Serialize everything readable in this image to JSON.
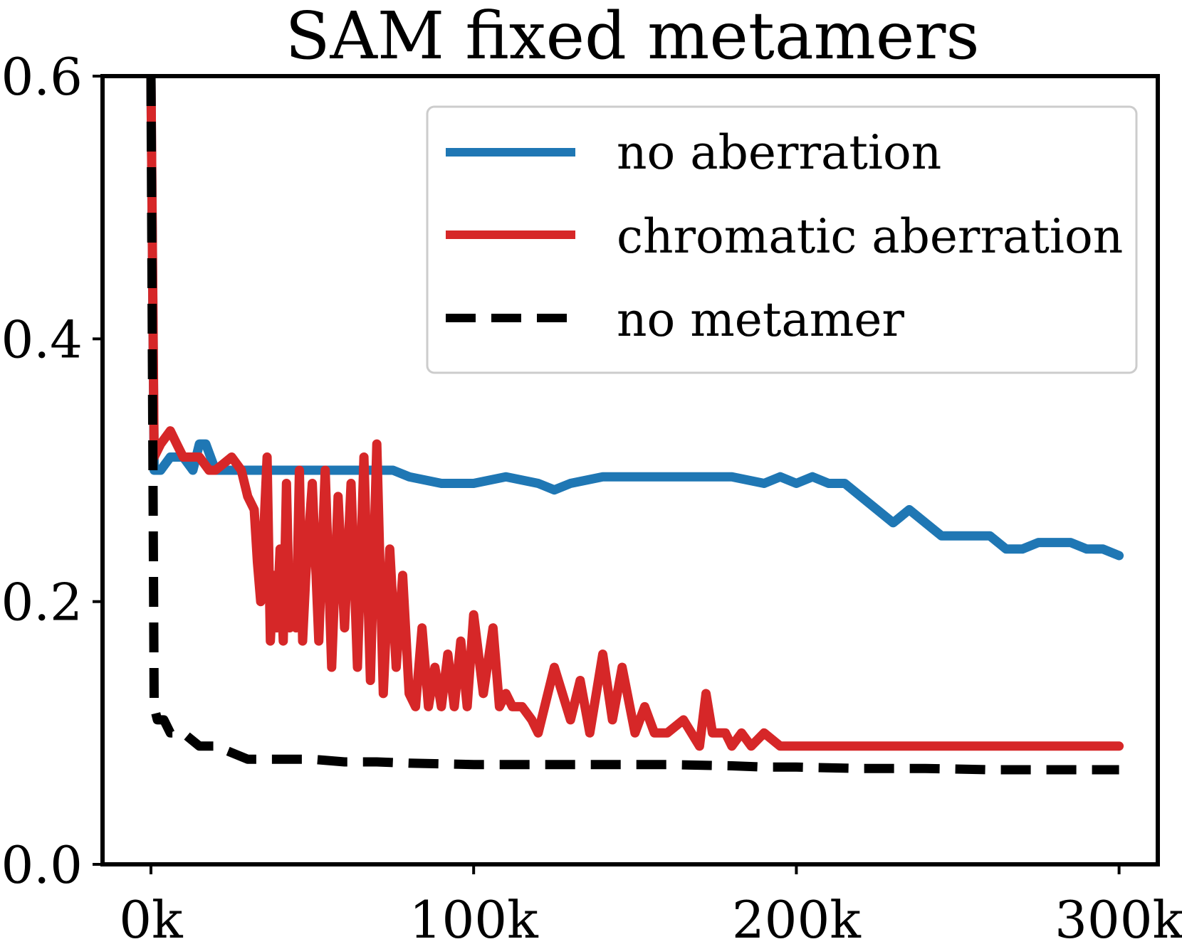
{
  "chart_data": {
    "type": "line",
    "title": "SAM fixed metamers",
    "xlabel": "",
    "ylabel": "",
    "xlim": [
      -15000,
      312000
    ],
    "ylim": [
      0,
      0.6
    ],
    "x_ticks": [
      0,
      100000,
      200000,
      300000
    ],
    "x_tick_labels": [
      "0k",
      "100k",
      "200k",
      "300k"
    ],
    "y_ticks": [
      0.0,
      0.2,
      0.4,
      0.6
    ],
    "y_tick_labels": [
      "0.0",
      "0.2",
      "0.4",
      "0.6"
    ],
    "grid": false,
    "legend_position": "top-right",
    "series": [
      {
        "name": "no aberration",
        "color": "#1f77b4",
        "style": "solid",
        "x": [
          0,
          1000,
          3000,
          6000,
          10000,
          13000,
          15000,
          17000,
          20000,
          25000,
          30000,
          35000,
          40000,
          45000,
          50000,
          55000,
          60000,
          65000,
          70000,
          75000,
          80000,
          90000,
          100000,
          110000,
          120000,
          125000,
          130000,
          140000,
          150000,
          160000,
          170000,
          180000,
          190000,
          195000,
          200000,
          205000,
          210000,
          215000,
          220000,
          225000,
          230000,
          235000,
          240000,
          245000,
          250000,
          255000,
          260000,
          265000,
          270000,
          275000,
          280000,
          285000,
          290000,
          295000,
          300000
        ],
        "y": [
          0.6,
          0.3,
          0.3,
          0.31,
          0.31,
          0.3,
          0.32,
          0.32,
          0.3,
          0.3,
          0.3,
          0.3,
          0.3,
          0.3,
          0.3,
          0.3,
          0.3,
          0.3,
          0.3,
          0.3,
          0.295,
          0.29,
          0.29,
          0.295,
          0.29,
          0.285,
          0.29,
          0.295,
          0.295,
          0.295,
          0.295,
          0.295,
          0.29,
          0.295,
          0.29,
          0.295,
          0.29,
          0.29,
          0.28,
          0.27,
          0.26,
          0.27,
          0.26,
          0.25,
          0.25,
          0.25,
          0.25,
          0.24,
          0.24,
          0.245,
          0.245,
          0.245,
          0.24,
          0.24,
          0.235
        ]
      },
      {
        "name": "chromatic aberration",
        "color": "#d62728",
        "style": "solid",
        "x": [
          0,
          1000,
          3000,
          6000,
          8000,
          10000,
          13000,
          15000,
          18000,
          20000,
          25000,
          28000,
          30000,
          32000,
          33000,
          34000,
          36000,
          37000,
          38000,
          39000,
          40000,
          41000,
          42000,
          43000,
          44000,
          45000,
          46000,
          47000,
          48000,
          50000,
          52000,
          54000,
          56000,
          58000,
          60000,
          62000,
          64000,
          66000,
          68000,
          70000,
          72000,
          74000,
          76000,
          78000,
          80000,
          82000,
          84000,
          86000,
          88000,
          90000,
          92000,
          94000,
          96000,
          98000,
          100000,
          103000,
          106000,
          108000,
          110000,
          112000,
          115000,
          118000,
          120000,
          125000,
          130000,
          133000,
          136000,
          140000,
          143000,
          146000,
          150000,
          153000,
          156000,
          160000,
          165000,
          170000,
          172000,
          174000,
          178000,
          180000,
          183000,
          186000,
          190000,
          195000,
          200000,
          205000,
          210000,
          220000,
          230000,
          240000,
          250000,
          260000,
          270000,
          280000,
          290000,
          300000
        ],
        "y": [
          0.6,
          0.31,
          0.32,
          0.33,
          0.32,
          0.31,
          0.31,
          0.31,
          0.3,
          0.3,
          0.31,
          0.3,
          0.28,
          0.27,
          0.23,
          0.2,
          0.31,
          0.17,
          0.22,
          0.18,
          0.24,
          0.17,
          0.29,
          0.18,
          0.22,
          0.18,
          0.3,
          0.17,
          0.22,
          0.29,
          0.17,
          0.3,
          0.15,
          0.28,
          0.18,
          0.29,
          0.15,
          0.31,
          0.14,
          0.32,
          0.13,
          0.24,
          0.15,
          0.22,
          0.13,
          0.12,
          0.18,
          0.12,
          0.15,
          0.12,
          0.16,
          0.12,
          0.17,
          0.12,
          0.19,
          0.13,
          0.18,
          0.12,
          0.13,
          0.12,
          0.12,
          0.11,
          0.1,
          0.15,
          0.11,
          0.14,
          0.1,
          0.16,
          0.11,
          0.15,
          0.1,
          0.12,
          0.1,
          0.1,
          0.11,
          0.09,
          0.13,
          0.1,
          0.1,
          0.09,
          0.1,
          0.09,
          0.1,
          0.09,
          0.09,
          0.09,
          0.09,
          0.09,
          0.09,
          0.09,
          0.09,
          0.09,
          0.09,
          0.09,
          0.09,
          0.09
        ]
      },
      {
        "name": "no metamer",
        "color": "#000000",
        "style": "dashed",
        "x": [
          0,
          1000,
          2000,
          4000,
          6000,
          10000,
          15000,
          20000,
          25000,
          30000,
          40000,
          50000,
          60000,
          70000,
          80000,
          100000,
          120000,
          140000,
          160000,
          180000,
          190000,
          200000,
          220000,
          240000,
          260000,
          280000,
          300000
        ],
        "y": [
          0.6,
          0.12,
          0.11,
          0.11,
          0.1,
          0.1,
          0.09,
          0.09,
          0.085,
          0.08,
          0.08,
          0.08,
          0.078,
          0.078,
          0.077,
          0.076,
          0.076,
          0.076,
          0.076,
          0.075,
          0.074,
          0.074,
          0.073,
          0.073,
          0.072,
          0.072,
          0.072
        ]
      }
    ]
  }
}
